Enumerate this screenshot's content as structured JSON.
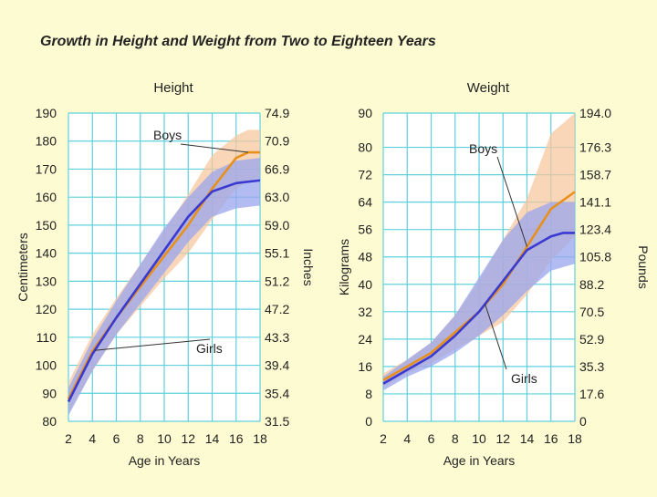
{
  "title": "Growth in Height and Weight from Two to Eighteen Years",
  "chart_data": [
    {
      "type": "line",
      "subtitle": "Height",
      "xlabel": "Age in Years",
      "ylabel": "Centimeters",
      "ylabel_right": "Inches",
      "x_ticks": [
        2,
        4,
        6,
        8,
        10,
        12,
        14,
        16,
        18
      ],
      "xlim": [
        2,
        18
      ],
      "ylim": [
        80,
        190
      ],
      "y_ticks_left": [
        80,
        90,
        100,
        110,
        120,
        130,
        140,
        150,
        160,
        170,
        180,
        190
      ],
      "y_ticks_right": [
        "31.5",
        "35.4",
        "39.4",
        "43.3",
        "47.2",
        "51.2",
        "55.1",
        "59.0",
        "63.0",
        "66.9",
        "70.9",
        "74.9"
      ],
      "grid": true,
      "series": [
        {
          "name": "Boys",
          "color": "#e8901c",
          "band_color": "#f8c8a0",
          "x": [
            2,
            4,
            6,
            8,
            10,
            12,
            14,
            16,
            17,
            18
          ],
          "y": [
            88,
            105,
            117,
            128,
            139,
            150,
            163,
            174,
            176,
            176
          ],
          "lower": [
            83,
            98,
            111,
            121,
            131,
            140,
            152,
            163,
            166,
            167
          ],
          "upper": [
            94,
            111,
            124,
            136,
            148,
            161,
            175,
            182,
            184,
            184
          ]
        },
        {
          "name": "Girls",
          "color": "#3a3ad0",
          "band_color": "#9aa6ee",
          "x": [
            2,
            4,
            6,
            8,
            10,
            12,
            14,
            16,
            18
          ],
          "y": [
            87,
            104,
            117,
            129,
            141,
            153,
            162,
            165,
            166
          ],
          "lower": [
            82,
            98,
            111,
            122,
            133,
            144,
            153,
            156,
            157
          ],
          "upper": [
            92,
            109,
            123,
            136,
            149,
            160,
            169,
            173,
            174
          ]
        }
      ],
      "annotations": [
        {
          "text": "Boys",
          "series": "Boys"
        },
        {
          "text": "Girls",
          "series": "Girls"
        }
      ]
    },
    {
      "type": "line",
      "subtitle": "Weight",
      "xlabel": "Age in Years",
      "ylabel": "Kilograms",
      "ylabel_right": "Pounds",
      "x_ticks": [
        2,
        4,
        6,
        8,
        10,
        12,
        14,
        16,
        18
      ],
      "xlim": [
        2,
        18
      ],
      "ylim": [
        0,
        90
      ],
      "y_ticks_left": [
        0,
        8,
        16,
        24,
        32,
        40,
        48,
        56,
        64,
        72,
        80,
        90
      ],
      "y_ticks_right": [
        "0",
        "17.6",
        "35.3",
        "52.9",
        "70.5",
        "88.2",
        "105.8",
        "123.4",
        "141.1",
        "158.7",
        "176.3",
        "194.0"
      ],
      "grid": true,
      "series": [
        {
          "name": "Boys",
          "color": "#e8901c",
          "band_color": "#f8c8a0",
          "x": [
            2,
            4,
            6,
            8,
            10,
            12,
            14,
            16,
            18
          ],
          "y": [
            12,
            16,
            20,
            26,
            32,
            40,
            51,
            62,
            67
          ],
          "lower": [
            10,
            14,
            17,
            21,
            25,
            29,
            37,
            47,
            54
          ],
          "upper": [
            14,
            18,
            23,
            31,
            41,
            53,
            65,
            84,
            90
          ]
        },
        {
          "name": "Girls",
          "color": "#3a3ad0",
          "band_color": "#9aa6ee",
          "x": [
            2,
            4,
            6,
            8,
            10,
            12,
            14,
            16,
            17,
            18
          ],
          "y": [
            11,
            15,
            19,
            25,
            32,
            41,
            50,
            54,
            55,
            55
          ],
          "lower": [
            9,
            13,
            16,
            20,
            25,
            31,
            38,
            44,
            45,
            46
          ],
          "upper": [
            13,
            18,
            23,
            31,
            42,
            53,
            61,
            64,
            64,
            64
          ]
        }
      ],
      "annotations": [
        {
          "text": "Boys",
          "series": "Boys"
        },
        {
          "text": "Girls",
          "series": "Girls"
        }
      ]
    }
  ]
}
